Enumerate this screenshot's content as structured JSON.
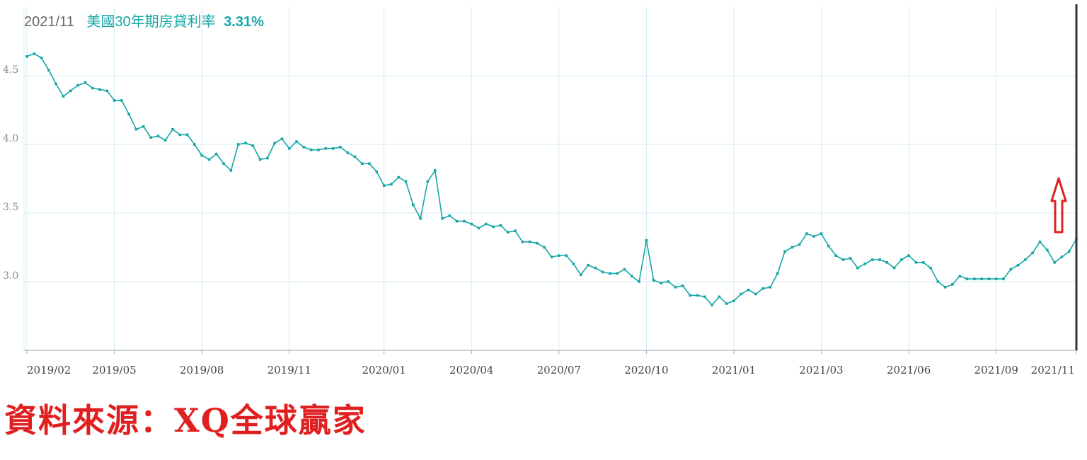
{
  "header": {
    "date": "2021/11",
    "series_label": "美國30年期房貸利率",
    "current_value": "3.31%"
  },
  "source_caption": "資料來源：XQ全球贏家",
  "colors": {
    "line": "#17a6a6",
    "grid": "#d3ecf2",
    "axis_text": "#8a8a8a",
    "arrow": "#e02020",
    "cursor": "#333333"
  },
  "chart_data": {
    "type": "line",
    "title": "美國30年期房貸利率",
    "xlabel": "",
    "ylabel": "",
    "ylim": [
      2.5,
      5.0
    ],
    "yticks": [
      3.0,
      3.5,
      4.0,
      4.5
    ],
    "ytick_labels": [
      "3.0",
      "3.5",
      "4.0",
      "4.5"
    ],
    "xticks": [
      "2019/02",
      "2019/05",
      "2019/08",
      "2019/11",
      "2020/01",
      "2020/04",
      "2020/07",
      "2020/10",
      "2021/01",
      "2021/03",
      "2021/06",
      "2021/09",
      "2021/11"
    ],
    "grid": true,
    "annotation": "red up arrow near latest value",
    "series": [
      {
        "values": [
          4.64,
          4.66,
          4.63,
          4.54,
          4.44,
          4.35,
          4.39,
          4.43,
          4.45,
          4.41,
          4.4,
          4.39,
          4.32,
          4.32,
          4.22,
          4.11,
          4.13,
          4.05,
          4.06,
          4.03,
          4.11,
          4.07,
          4.07,
          4.0,
          3.92,
          3.89,
          3.93,
          3.86,
          3.81,
          4.0,
          4.01,
          3.99,
          3.89,
          3.9,
          4.01,
          4.04,
          3.97,
          4.02,
          3.98,
          3.96,
          3.96,
          3.97,
          3.97,
          3.98,
          3.94,
          3.91,
          3.86,
          3.86,
          3.8,
          3.7,
          3.71,
          3.76,
          3.73,
          3.56,
          3.46,
          3.73,
          3.81,
          3.46,
          3.48,
          3.44,
          3.44,
          3.42,
          3.39,
          3.42,
          3.4,
          3.41,
          3.36,
          3.37,
          3.29,
          3.29,
          3.28,
          3.25,
          3.18,
          3.19,
          3.19,
          3.13,
          3.05,
          3.12,
          3.1,
          3.07,
          3.06,
          3.06,
          3.09,
          3.04,
          3.0,
          3.3,
          3.01,
          2.99,
          3.0,
          2.96,
          2.97,
          2.9,
          2.9,
          2.89,
          2.83,
          2.89,
          2.84,
          2.86,
          2.91,
          2.94,
          2.91,
          2.95,
          2.96,
          3.06,
          3.22,
          3.25,
          3.27,
          3.35,
          3.33,
          3.35,
          3.26,
          3.19,
          3.16,
          3.17,
          3.1,
          3.13,
          3.16,
          3.16,
          3.14,
          3.1,
          3.16,
          3.19,
          3.14,
          3.14,
          3.1,
          3.0,
          2.96,
          2.98,
          3.04,
          3.02,
          3.02,
          3.02,
          3.02,
          3.02,
          3.02,
          3.09,
          3.12,
          3.16,
          3.21,
          3.29,
          3.23,
          3.14,
          3.18,
          3.22,
          3.31
        ]
      }
    ]
  }
}
